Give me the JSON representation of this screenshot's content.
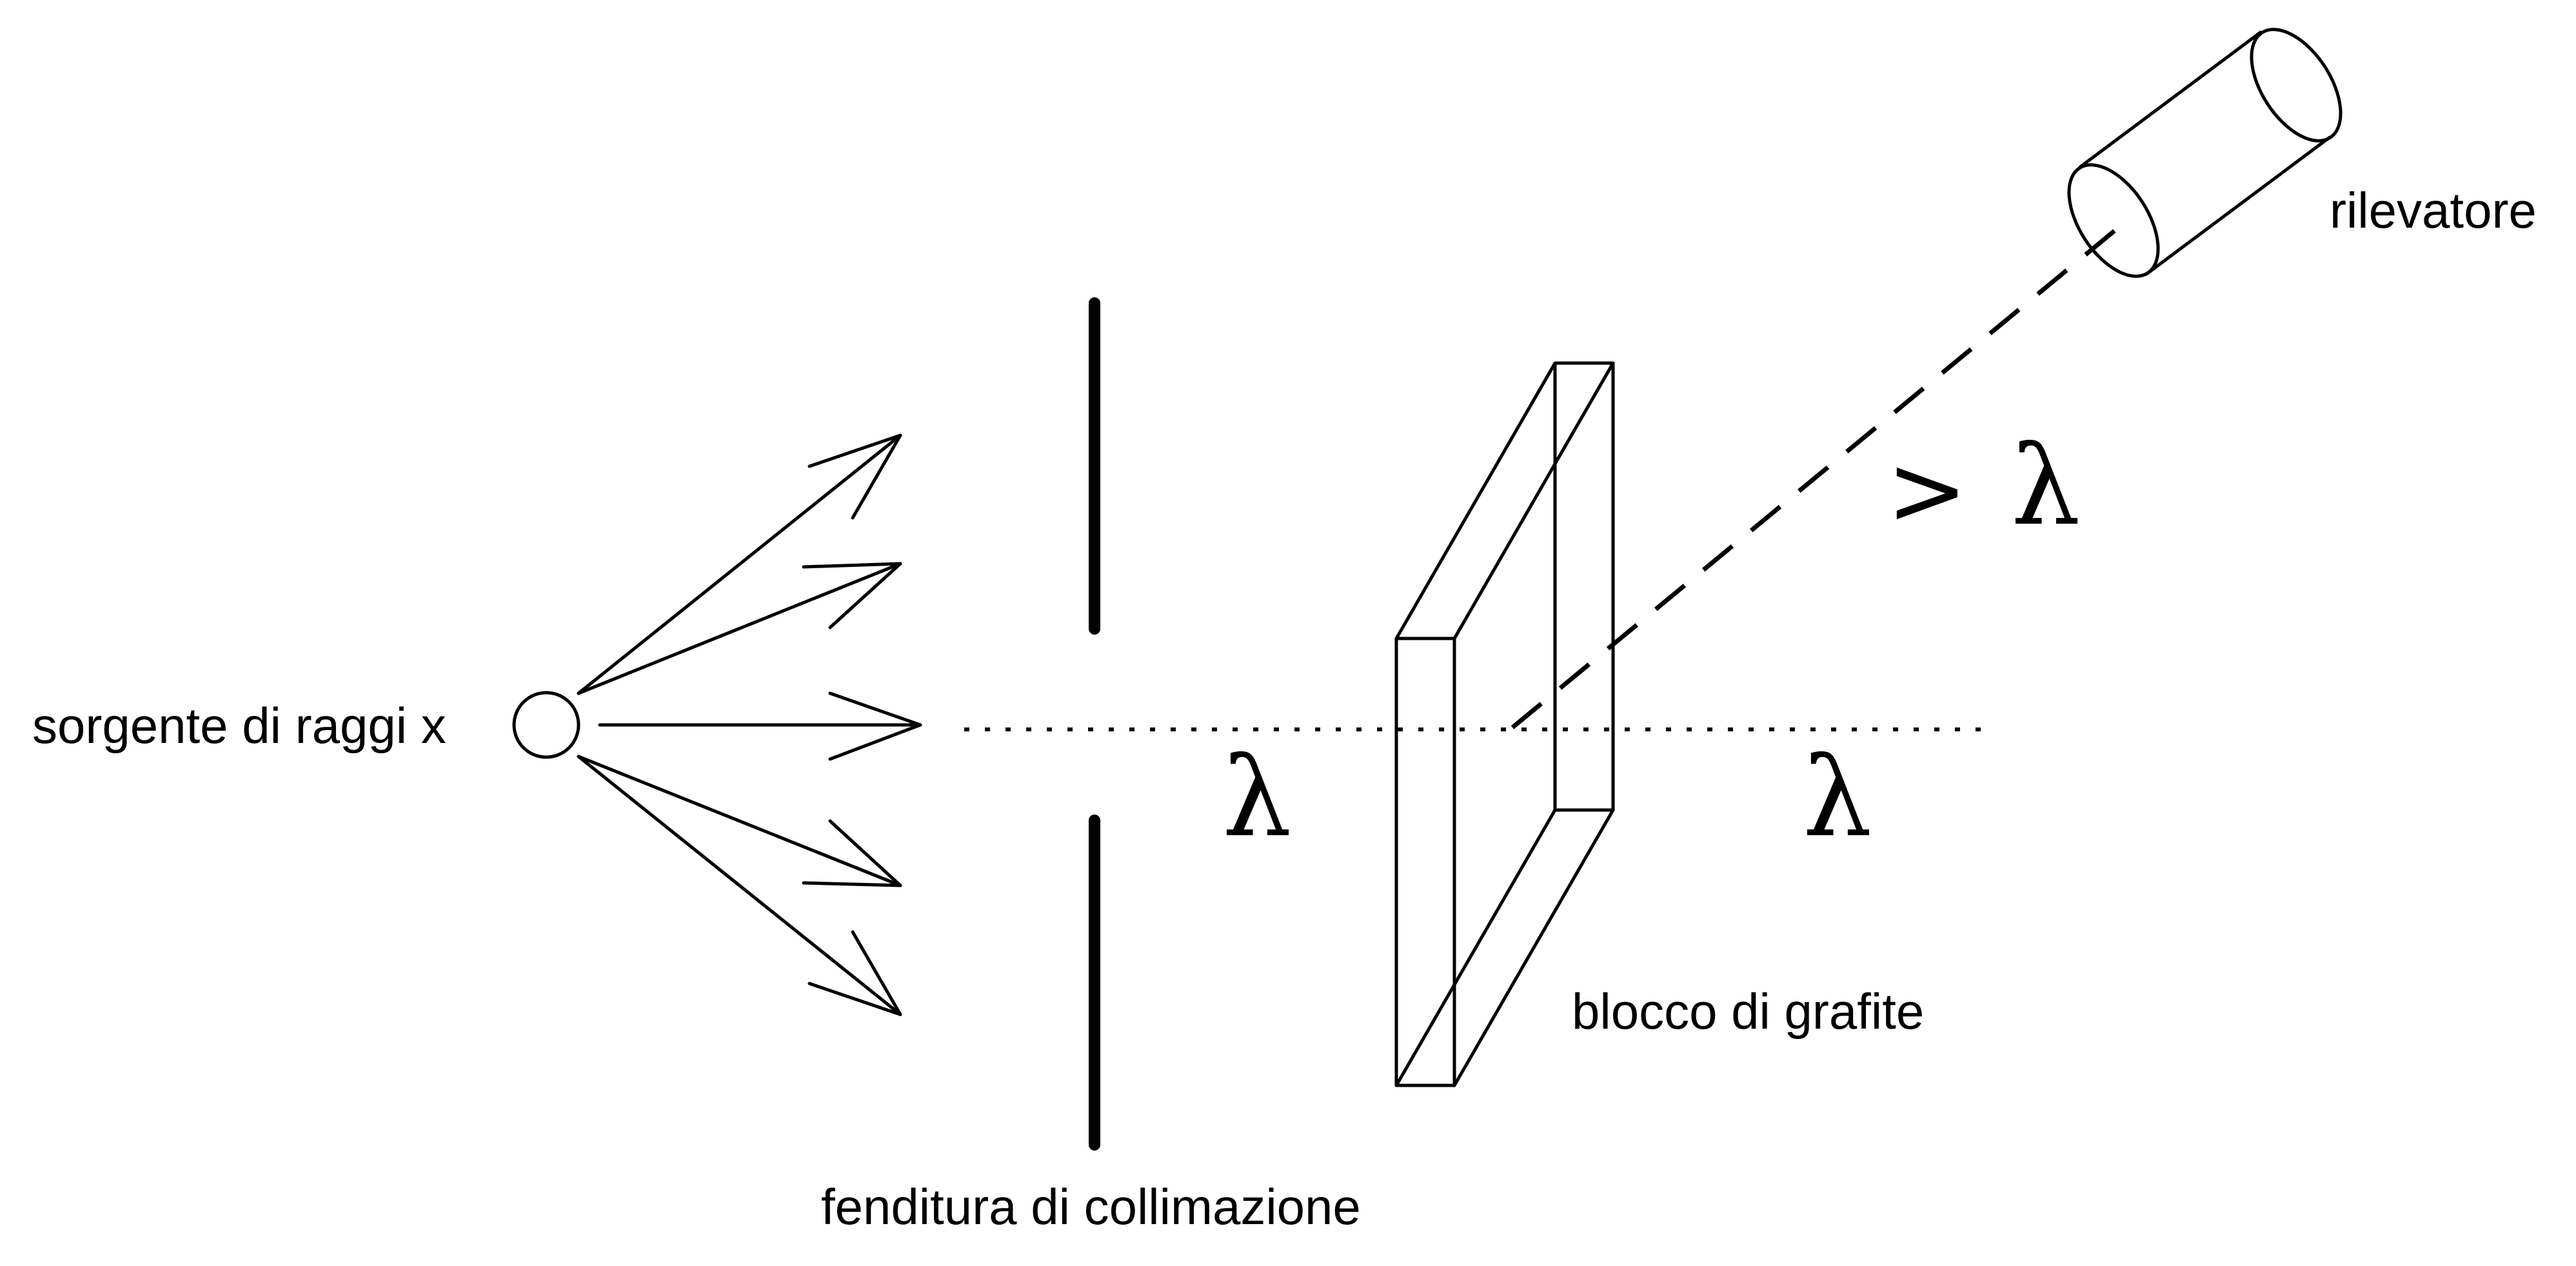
{
  "labels": {
    "source": "sorgente di raggi x",
    "slit": "fenditura di collimazione",
    "block": "blocco di grafite",
    "detector": "rilevatore"
  },
  "symbols": {
    "incident_wavelength": "λ",
    "transmitted_wavelength": "λ",
    "scattered_greater": ">",
    "scattered_wavelength": "λ"
  }
}
